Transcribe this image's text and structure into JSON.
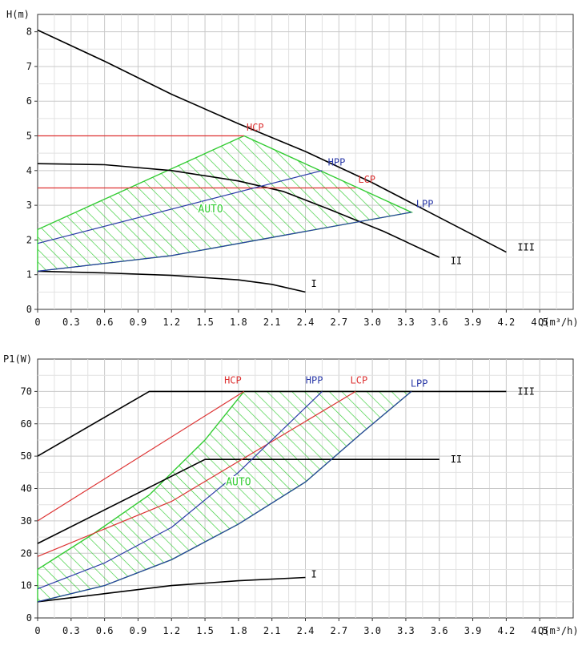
{
  "chart_data": [
    {
      "type": "line",
      "ylabel": "H(m)",
      "xlabel": "Q(m³/h)",
      "xlim": [
        0,
        4.8
      ],
      "ylim": [
        0,
        8.5
      ],
      "xticks": [
        "0",
        "0.3",
        "0.6",
        "0.9",
        "1.2",
        "1.5",
        "1.8",
        "2.1",
        "2.4",
        "2.7",
        "3.0",
        "3.3",
        "3.6",
        "3.9",
        "4.2",
        "4.5"
      ],
      "yticks": [
        "0",
        "1",
        "2",
        "3",
        "4",
        "5",
        "6",
        "7",
        "8"
      ],
      "grid": true,
      "auto_region": {
        "label": "AUTO",
        "color": "#33cc33",
        "points": [
          [
            0,
            1.1
          ],
          [
            0,
            2.3
          ],
          [
            1.85,
            5.0
          ],
          [
            3.35,
            2.8
          ],
          [
            1.2,
            1.55
          ],
          [
            0,
            1.1
          ]
        ]
      },
      "series": [
        {
          "name": "I",
          "color": "#000000",
          "points": [
            [
              0,
              1.1
            ],
            [
              0.6,
              1.05
            ],
            [
              1.2,
              0.98
            ],
            [
              1.8,
              0.85
            ],
            [
              2.1,
              0.72
            ],
            [
              2.4,
              0.5
            ]
          ]
        },
        {
          "name": "II",
          "color": "#000000",
          "points": [
            [
              0,
              4.2
            ],
            [
              0.6,
              4.17
            ],
            [
              1.2,
              4.0
            ],
            [
              1.8,
              3.7
            ],
            [
              2.2,
              3.4
            ],
            [
              2.6,
              2.9
            ],
            [
              3.1,
              2.25
            ],
            [
              3.6,
              1.5
            ]
          ]
        },
        {
          "name": "III",
          "color": "#000000",
          "points": [
            [
              0,
              8.05
            ],
            [
              0.6,
              7.15
            ],
            [
              1.2,
              6.2
            ],
            [
              1.8,
              5.35
            ],
            [
              2.4,
              4.55
            ],
            [
              3.0,
              3.65
            ],
            [
              3.6,
              2.65
            ],
            [
              4.2,
              1.65
            ]
          ]
        },
        {
          "name": "HCP",
          "color": "#dd3333",
          "points": [
            [
              0,
              5.0
            ],
            [
              1.85,
              5.0
            ]
          ]
        },
        {
          "name": "LCP",
          "color": "#dd3333",
          "points": [
            [
              0,
              3.5
            ],
            [
              2.85,
              3.5
            ]
          ]
        },
        {
          "name": "HPP",
          "color": "#2b3aa8",
          "points": [
            [
              0,
              1.9
            ],
            [
              2.55,
              4.0
            ]
          ]
        },
        {
          "name": "LPP",
          "color": "#2b3aa8",
          "points": [
            [
              0,
              1.1
            ],
            [
              1.2,
              1.55
            ],
            [
              3.35,
              2.8
            ]
          ]
        }
      ],
      "labels": [
        {
          "text": "HCP",
          "x": 1.95,
          "y": 5.15,
          "color": "#dd3333"
        },
        {
          "text": "HPP",
          "x": 2.68,
          "y": 4.15,
          "color": "#2b3aa8"
        },
        {
          "text": "LCP",
          "x": 2.95,
          "y": 3.65,
          "color": "#dd3333"
        },
        {
          "text": "LPP",
          "x": 3.47,
          "y": 2.95,
          "color": "#2b3aa8"
        },
        {
          "text": "I",
          "x": 2.45,
          "y": 0.65,
          "color": "#000000"
        },
        {
          "text": "II",
          "x": 3.7,
          "y": 1.3,
          "color": "#000000"
        },
        {
          "text": "III",
          "x": 4.3,
          "y": 1.7,
          "color": "#000000"
        },
        {
          "text": "AUTO",
          "x": 1.55,
          "y": 2.8,
          "color": "#33cc33"
        }
      ]
    },
    {
      "type": "line",
      "ylabel": "P1(W)",
      "xlabel": "Q(m³/h)",
      "xlim": [
        0,
        4.8
      ],
      "ylim": [
        0,
        80
      ],
      "xticks": [
        "0",
        "0.3",
        "0.6",
        "0.9",
        "1.2",
        "1.5",
        "1.8",
        "2.1",
        "2.4",
        "2.7",
        "3.0",
        "3.3",
        "3.6",
        "3.9",
        "4.2",
        "4.5"
      ],
      "yticks": [
        "0",
        "10",
        "20",
        "30",
        "40",
        "50",
        "60",
        "70"
      ],
      "grid": true,
      "auto_region": {
        "label": "AUTO",
        "color": "#33cc33",
        "points": [
          [
            0,
            5
          ],
          [
            0,
            15
          ],
          [
            0.5,
            26
          ],
          [
            1.0,
            38
          ],
          [
            1.5,
            55
          ],
          [
            1.85,
            70
          ],
          [
            3.35,
            70
          ],
          [
            2.9,
            57
          ],
          [
            2.4,
            42
          ],
          [
            1.8,
            29
          ],
          [
            1.2,
            18
          ],
          [
            0.6,
            10
          ],
          [
            0,
            5
          ]
        ]
      },
      "series": [
        {
          "name": "I",
          "color": "#000000",
          "points": [
            [
              0,
              5
            ],
            [
              0.6,
              7.5
            ],
            [
              1.2,
              10
            ],
            [
              1.8,
              11.5
            ],
            [
              2.4,
              12.5
            ]
          ]
        },
        {
          "name": "II",
          "color": "#000000",
          "points": [
            [
              0,
              23
            ],
            [
              1.5,
              49
            ],
            [
              3.6,
              49
            ]
          ]
        },
        {
          "name": "III",
          "color": "#000000",
          "points": [
            [
              0,
              50
            ],
            [
              1.0,
              70
            ],
            [
              4.2,
              70
            ]
          ]
        },
        {
          "name": "HCP",
          "color": "#dd3333",
          "points": [
            [
              0,
              30
            ],
            [
              1.85,
              70
            ]
          ]
        },
        {
          "name": "LCP",
          "color": "#dd3333",
          "points": [
            [
              0,
              19
            ],
            [
              1.2,
              36
            ],
            [
              2.85,
              70
            ]
          ]
        },
        {
          "name": "HPP",
          "color": "#2b3aa8",
          "points": [
            [
              0,
              9
            ],
            [
              0.6,
              17
            ],
            [
              1.2,
              28
            ],
            [
              1.8,
              45
            ],
            [
              2.55,
              70
            ]
          ]
        },
        {
          "name": "LPP",
          "color": "#2b3aa8",
          "points": [
            [
              0,
              5
            ],
            [
              0.6,
              10
            ],
            [
              1.2,
              18
            ],
            [
              1.8,
              29
            ],
            [
              2.4,
              42
            ],
            [
              2.9,
              57
            ],
            [
              3.35,
              70
            ]
          ]
        }
      ],
      "labels": [
        {
          "text": "HCP",
          "x": 1.75,
          "y": 72.5,
          "color": "#dd3333"
        },
        {
          "text": "HPP",
          "x": 2.48,
          "y": 72.5,
          "color": "#2b3aa8"
        },
        {
          "text": "LCP",
          "x": 2.88,
          "y": 72.5,
          "color": "#dd3333"
        },
        {
          "text": "LPP",
          "x": 3.42,
          "y": 71.5,
          "color": "#2b3aa8"
        },
        {
          "text": "I",
          "x": 2.45,
          "y": 12.5,
          "color": "#000000"
        },
        {
          "text": "II",
          "x": 3.7,
          "y": 48,
          "color": "#000000"
        },
        {
          "text": "III",
          "x": 4.3,
          "y": 69,
          "color": "#000000"
        },
        {
          "text": "AUTO",
          "x": 1.8,
          "y": 41,
          "color": "#33cc33"
        }
      ]
    }
  ]
}
